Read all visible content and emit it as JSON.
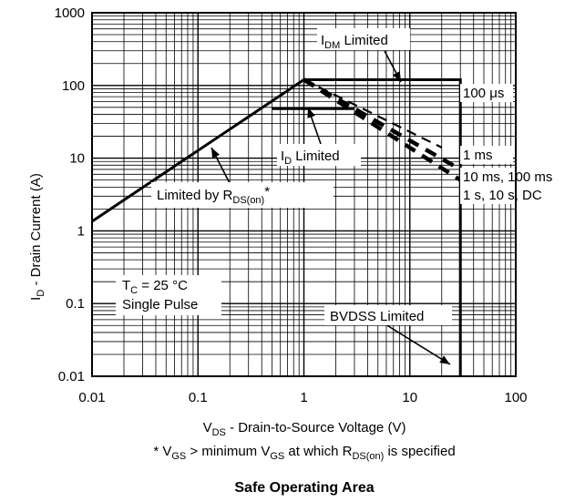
{
  "chart_data": {
    "type": "line",
    "title": "Safe Operating Area",
    "xlabel": {
      "main": "V",
      "sub": "DS",
      "rest": " - Drain-to-Source Voltage (V)"
    },
    "ylabel": {
      "main": "I",
      "sub": "D",
      "rest": " - Drain Current (A)"
    },
    "footnote": {
      "p1": "* V",
      "s1": "GS",
      "p2": " > minimum V",
      "s2": "GS",
      "p3": " at which R",
      "s3": "DS(on)",
      "p4": " is specified"
    },
    "xscale": "log",
    "yscale": "log",
    "xlim": [
      0.01,
      100
    ],
    "ylim": [
      0.01,
      1000
    ],
    "grid": true,
    "x_ticks": [
      "0.01",
      "0.1",
      "1",
      "10",
      "100"
    ],
    "y_ticks": [
      "0.01",
      "0.1",
      "1",
      "10",
      "100",
      "1000"
    ],
    "series": [
      {
        "style": "solid",
        "points": [
          [
            0.01,
            1.35
          ],
          [
            1.0,
            120
          ],
          [
            30,
            120
          ],
          [
            30,
            0.01
          ]
        ]
      },
      {
        "style": "solid",
        "points": [
          [
            0.5,
            48
          ],
          [
            3.0,
            48
          ]
        ]
      },
      {
        "style": "dashed",
        "points": [
          [
            1.0,
            120
          ],
          [
            20,
            14
          ]
        ]
      },
      {
        "style": "dashed",
        "points": [
          [
            1.0,
            120
          ],
          [
            30,
            7
          ]
        ]
      },
      {
        "style": "dashed",
        "points": [
          [
            1.0,
            120
          ],
          [
            30,
            5
          ]
        ]
      }
    ],
    "annotations": {
      "idm": {
        "main": "I",
        "sub": "DM",
        "rest": " Limited"
      },
      "id_limited": {
        "main": "I",
        "sub": "D",
        "rest": " Limited"
      },
      "rds": {
        "main": "Limited by R",
        "sub": "DS(on)",
        "rest": "*"
      },
      "tc": {
        "main": "T",
        "sub": "C",
        "rest": " = 25 °C"
      },
      "single_pulse": "Single Pulse",
      "bvdss": "BVDSS Limited",
      "t100us": "100 μs",
      "t1ms": "1 ms",
      "t10ms": "10 ms, 100 ms",
      "t1s": "1 s, 10 s, DC"
    }
  }
}
